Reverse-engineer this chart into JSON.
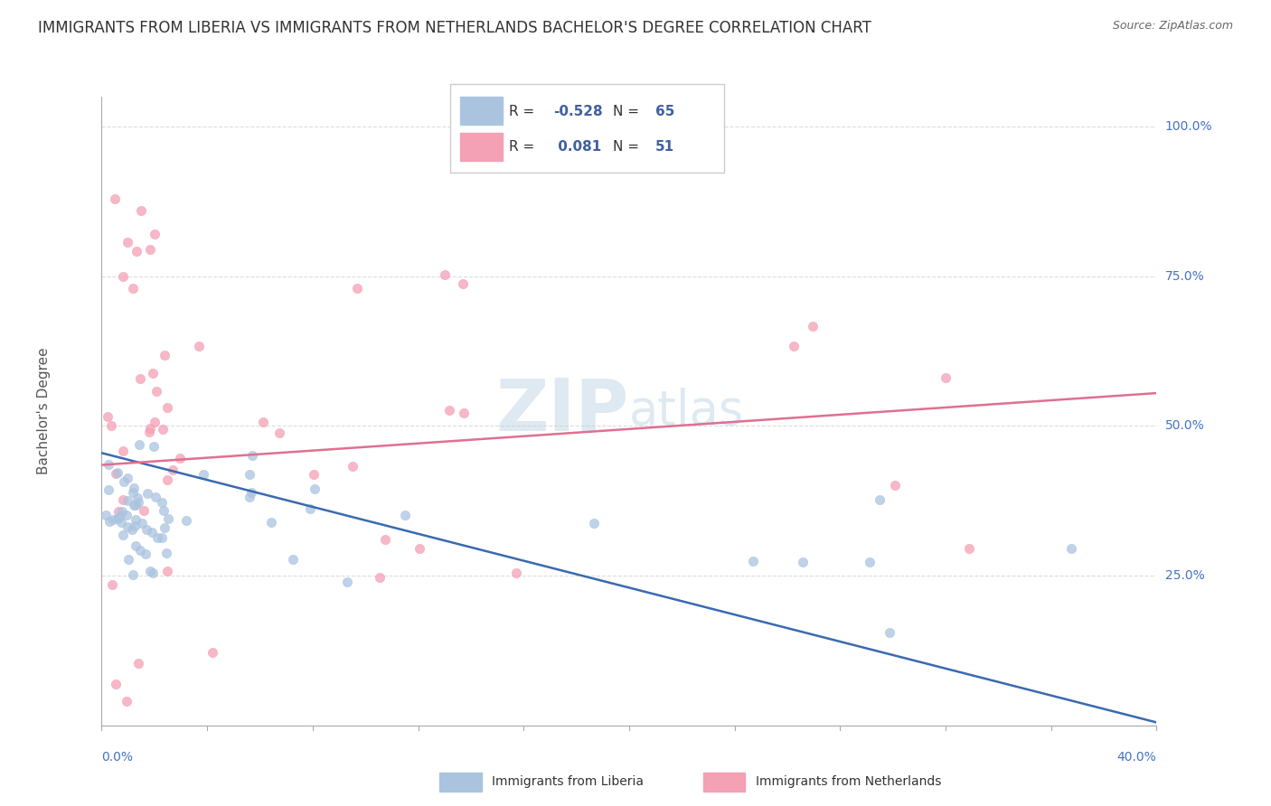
{
  "title": "IMMIGRANTS FROM LIBERIA VS IMMIGRANTS FROM NETHERLANDS BACHELOR'S DEGREE CORRELATION CHART",
  "source": "Source: ZipAtlas.com",
  "ylabel": "Bachelor's Degree",
  "xlim": [
    0.0,
    0.4
  ],
  "ylim": [
    0.0,
    1.05
  ],
  "ytick_positions": [
    0.25,
    0.5,
    0.75,
    1.0
  ],
  "ytick_labels": [
    "25.0%",
    "50.0%",
    "75.0%",
    "100.0%"
  ],
  "series": [
    {
      "name": "Immigrants from Liberia",
      "R": -0.528,
      "N": 65,
      "scatter_color": "#aac4e0",
      "trend_color": "#3a6ab0",
      "trend_x": [
        0.0,
        0.4
      ],
      "trend_y": [
        0.455,
        0.005
      ]
    },
    {
      "name": "Immigrants from Netherlands",
      "R": 0.081,
      "N": 51,
      "scatter_color": "#f4a0b5",
      "trend_color": "#e07090",
      "trend_x": [
        0.0,
        0.4
      ],
      "trend_y": [
        0.435,
        0.555
      ]
    }
  ],
  "legend_box_color": "#4060a0",
  "watermark": "ZIPatlas",
  "background_color": "#ffffff",
  "grid_color": "#cccccc",
  "title_color": "#333333",
  "axis_color": "#4472c4"
}
